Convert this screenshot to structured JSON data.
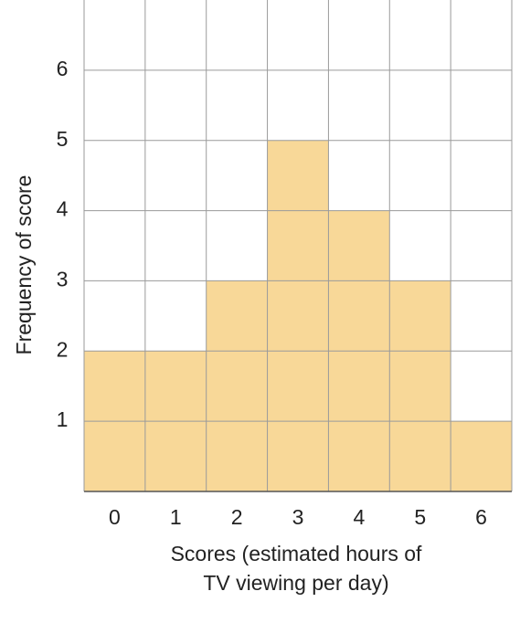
{
  "chart_data": {
    "type": "bar",
    "categories": [
      "0",
      "1",
      "2",
      "3",
      "4",
      "5",
      "6"
    ],
    "values": [
      2,
      2,
      3,
      5,
      4,
      3,
      1
    ],
    "color": "#f8d898",
    "ylim": [
      0,
      7
    ],
    "yticks": [
      1,
      2,
      3,
      4,
      5,
      6
    ],
    "grid": true,
    "y_label": "Frequency of score",
    "x_label": [
      "Scores (estimated hours of",
      "TV viewing per day)"
    ]
  }
}
